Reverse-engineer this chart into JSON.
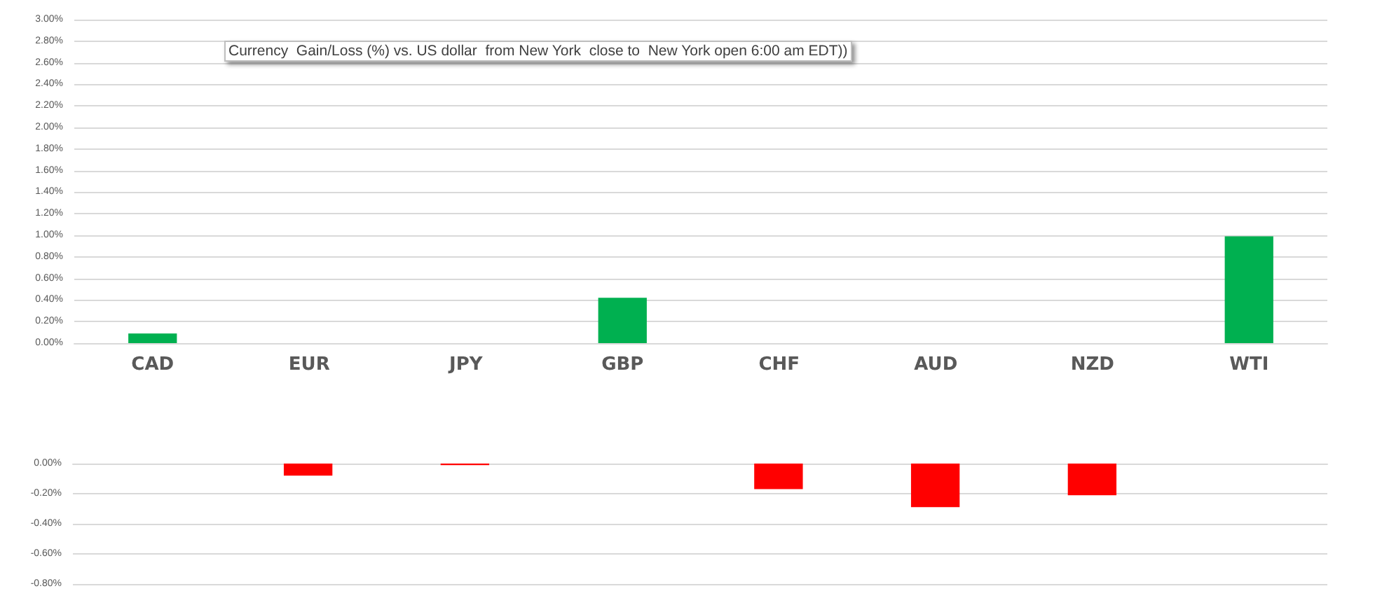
{
  "chart_data": [
    {
      "type": "bar",
      "title": "Currency  Gain/Loss (%) vs. US dollar  from New York  close to  New York open 6:00 am EDT))",
      "categories": [
        "CAD",
        "EUR",
        "JPY",
        "GBP",
        "CHF",
        "AUD",
        "NZD",
        "WTI"
      ],
      "values": [
        0.09,
        null,
        null,
        0.42,
        null,
        null,
        null,
        0.99
      ],
      "color": "#00b050",
      "ylim": [
        0,
        3
      ],
      "yticks": [
        {
          "value": 0,
          "label": "0.00%"
        },
        {
          "value": 0.2,
          "label": "0.20%"
        },
        {
          "value": 0.4,
          "label": "0.40%"
        },
        {
          "value": 0.6,
          "label": "0.60%"
        },
        {
          "value": 0.8,
          "label": "0.80%"
        },
        {
          "value": 1,
          "label": "1.00%"
        },
        {
          "value": 1.2,
          "label": "1.20%"
        },
        {
          "value": 1.4,
          "label": "1.40%"
        },
        {
          "value": 1.6,
          "label": "1.60%"
        },
        {
          "value": 1.8,
          "label": "1.80%"
        },
        {
          "value": 2,
          "label": "2.00%"
        },
        {
          "value": 2.2,
          "label": "2.20%"
        },
        {
          "value": 2.4,
          "label": "2.40%"
        },
        {
          "value": 2.6,
          "label": "2.60%"
        },
        {
          "value": 2.8,
          "label": "2.80%"
        },
        {
          "value": 3,
          "label": "3.00%"
        }
      ],
      "grid": "y"
    },
    {
      "type": "bar",
      "categories": [
        null,
        null,
        null,
        null,
        null,
        null,
        null,
        null
      ],
      "values": [
        null,
        -0.08,
        -0.01,
        null,
        -0.17,
        -0.29,
        -0.21,
        null
      ],
      "color": "#ff0000",
      "ylim": [
        -0.8,
        0
      ],
      "yticks": [
        {
          "value": -0.8,
          "label": "-0.80%"
        },
        {
          "value": -0.6,
          "label": "-0.60%"
        },
        {
          "value": -0.4,
          "label": "-0.40%"
        },
        {
          "value": -0.2,
          "label": "-0.20%"
        },
        {
          "value": 0,
          "label": "0.00%"
        }
      ],
      "grid": "y",
      "tick_labels": "y"
    }
  ]
}
